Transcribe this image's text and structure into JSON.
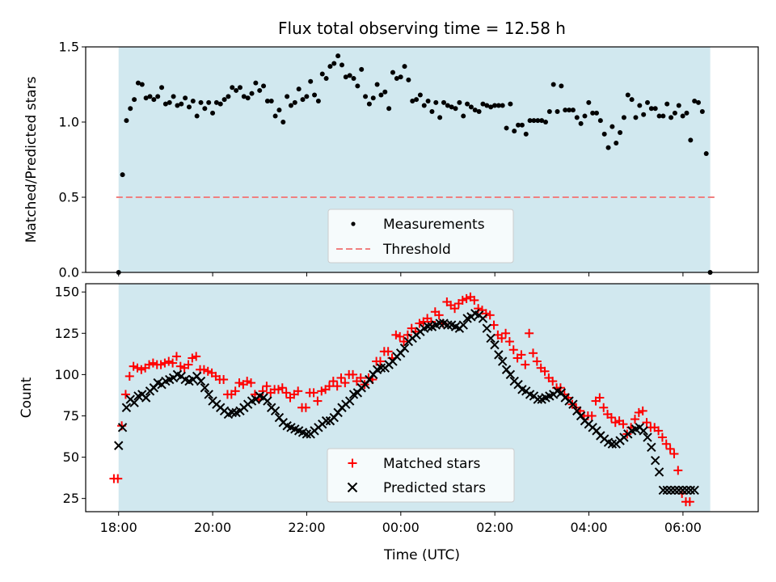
{
  "chart_data": [
    {
      "type": "scatter",
      "title": "Flux total observing time = 12.58 h",
      "xlabel": "",
      "ylabel": "Matched/Predicted stars",
      "ylim": [
        0,
        1.5
      ],
      "yticks": [
        "0.0",
        "0.5",
        "1.0",
        "1.5"
      ],
      "x_hours_range": [
        -0.7,
        13.6
      ],
      "observing_window_hours": [
        0.0,
        12.58
      ],
      "shade_color": "#d1e8ef",
      "threshold": {
        "name": "Threshold",
        "value": 0.5,
        "color": "#f08080",
        "x_start_hours": -0.05,
        "x_end_hours": 12.7
      },
      "series": [
        {
          "name": "Measurements",
          "color": "#000000",
          "x_start_hours": 0.0,
          "x_step_hours": 0.0833,
          "values": [
            0.0,
            0.65,
            1.01,
            1.09,
            1.15,
            1.26,
            1.25,
            1.16,
            1.17,
            1.15,
            1.17,
            1.23,
            1.12,
            1.13,
            1.17,
            1.11,
            1.12,
            1.16,
            1.1,
            1.14,
            1.04,
            1.13,
            1.09,
            1.13,
            1.06,
            1.13,
            1.12,
            1.15,
            1.17,
            1.23,
            1.21,
            1.23,
            1.17,
            1.16,
            1.19,
            1.26,
            1.21,
            1.24,
            1.14,
            1.14,
            1.04,
            1.08,
            1.0,
            1.17,
            1.11,
            1.13,
            1.22,
            1.15,
            1.17,
            1.27,
            1.18,
            1.14,
            1.32,
            1.29,
            1.37,
            1.39,
            1.44,
            1.38,
            1.3,
            1.31,
            1.29,
            1.24,
            1.35,
            1.17,
            1.12,
            1.16,
            1.25,
            1.18,
            1.2,
            1.09,
            1.33,
            1.29,
            1.3,
            1.37,
            1.28,
            1.14,
            1.15,
            1.18,
            1.11,
            1.14,
            1.07,
            1.13,
            1.03,
            1.13,
            1.11,
            1.1,
            1.09,
            1.13,
            1.04,
            1.12,
            1.1,
            1.08,
            1.07,
            1.12,
            1.11,
            1.1,
            1.11,
            1.11,
            1.11,
            0.96,
            1.12,
            0.94,
            0.98,
            0.98,
            0.92,
            1.01,
            1.01,
            1.01,
            1.01,
            1.0,
            1.07,
            1.25,
            1.07,
            1.24,
            1.08,
            1.08,
            1.08,
            1.03,
            0.99,
            1.04,
            1.13,
            1.06,
            1.06,
            1.01,
            0.92,
            0.83,
            0.97,
            0.86,
            0.93,
            1.03,
            1.18,
            1.15,
            1.03,
            1.11,
            1.05,
            1.13,
            1.09,
            1.09,
            1.04,
            1.04,
            1.12,
            1.03,
            1.06,
            1.11,
            1.04,
            1.06,
            0.88,
            1.14,
            1.13,
            1.07,
            0.79,
            0.0
          ]
        }
      ],
      "legend": [
        "Measurements",
        "Threshold"
      ],
      "legend_position": "bottom-center"
    },
    {
      "type": "scatter",
      "title": "",
      "xlabel": "Time (UTC)",
      "ylabel": "Count",
      "ylim": [
        17,
        155
      ],
      "yticks": [
        "25",
        "50",
        "75",
        "100",
        "125",
        "150"
      ],
      "xticks": [
        "18:00",
        "20:00",
        "22:00",
        "00:00",
        "02:00",
        "04:00",
        "06:00"
      ],
      "x_hours_range": [
        -0.7,
        13.6
      ],
      "observing_window_hours": [
        0.0,
        12.58
      ],
      "shade_color": "#d1e8ef",
      "x_start_hours": -0.1,
      "x_step_hours": 0.0833,
      "series": [
        {
          "name": "Matched stars",
          "marker": "plus",
          "color": "#ff0000",
          "values": [
            37,
            37,
            69,
            88,
            99,
            105,
            104,
            103,
            104,
            106,
            107,
            106,
            106,
            107,
            108,
            107,
            111,
            105,
            104,
            106,
            110,
            111,
            103,
            103,
            102,
            101,
            99,
            97,
            97,
            88,
            88,
            90,
            95,
            94,
            96,
            95,
            88,
            85,
            90,
            93,
            89,
            91,
            91,
            92,
            89,
            86,
            88,
            90,
            80,
            80,
            89,
            89,
            84,
            90,
            91,
            93,
            96,
            93,
            98,
            95,
            100,
            100,
            96,
            98,
            94,
            98,
            97,
            108,
            108,
            114,
            114,
            110,
            124,
            123,
            120,
            124,
            128,
            126,
            131,
            132,
            134,
            132,
            138,
            136,
            131,
            144,
            142,
            140,
            143,
            145,
            146,
            147,
            145,
            140,
            139,
            137,
            136,
            130,
            124,
            122,
            125,
            120,
            115,
            110,
            112,
            106,
            125,
            113,
            108,
            104,
            102,
            98,
            96,
            92,
            92,
            88,
            86,
            82,
            80,
            78,
            75,
            75,
            75,
            84,
            86,
            80,
            76,
            74,
            71,
            72,
            70,
            64,
            68,
            73,
            77,
            78,
            71,
            68,
            68,
            66,
            62,
            58,
            55,
            52,
            42,
            28,
            23,
            23
          ]
        },
        {
          "name": "Predicted stars",
          "marker": "x",
          "color": "#000000",
          "values": [
            57,
            68,
            80,
            85,
            83,
            87,
            88,
            86,
            90,
            92,
            95,
            94,
            96,
            97,
            98,
            100,
            99,
            97,
            96,
            97,
            99,
            96,
            92,
            88,
            84,
            82,
            80,
            78,
            76,
            77,
            77,
            78,
            80,
            82,
            84,
            85,
            87,
            86,
            84,
            80,
            78,
            74,
            71,
            69,
            68,
            67,
            66,
            65,
            64,
            64,
            66,
            68,
            70,
            72,
            72,
            74,
            77,
            80,
            82,
            84,
            88,
            89,
            92,
            94,
            97,
            100,
            103,
            104,
            104,
            106,
            108,
            111,
            113,
            116,
            120,
            122,
            124,
            126,
            128,
            129,
            129,
            130,
            131,
            131,
            130,
            130,
            129,
            128,
            130,
            134,
            135,
            137,
            136,
            134,
            128,
            122,
            118,
            112,
            108,
            103,
            100,
            96,
            94,
            91,
            90,
            88,
            87,
            85,
            85,
            86,
            87,
            88,
            90,
            89,
            86,
            84,
            82,
            78,
            75,
            72,
            70,
            68,
            66,
            63,
            61,
            59,
            58,
            58,
            60,
            62,
            64,
            66,
            67,
            68,
            66,
            62,
            56,
            48,
            41,
            30,
            30,
            30,
            30,
            30,
            30,
            30,
            30,
            30
          ]
        }
      ],
      "legend": [
        "Matched stars",
        "Predicted stars"
      ],
      "legend_position": "bottom-center"
    }
  ]
}
